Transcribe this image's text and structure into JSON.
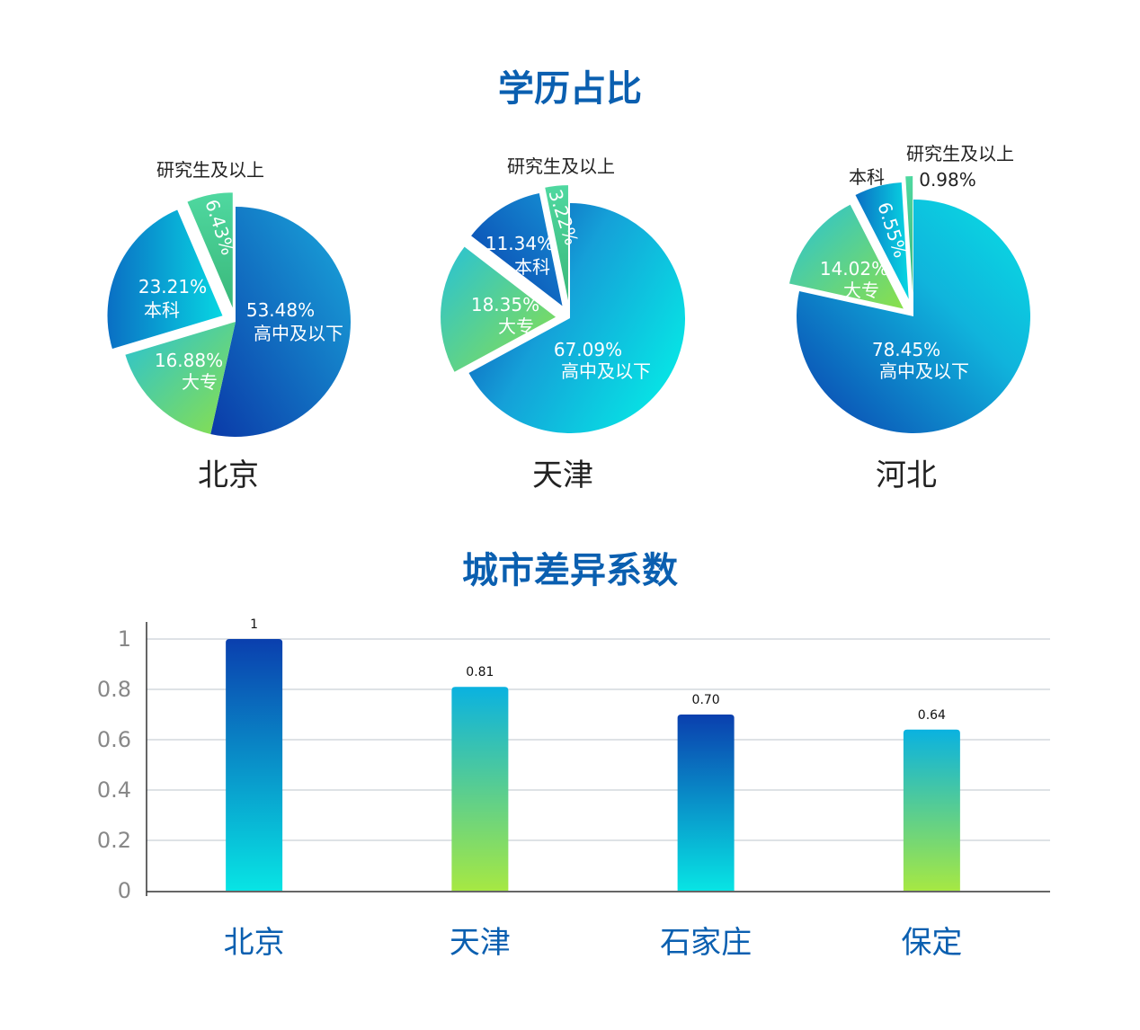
{
  "section1_title": "学历占比",
  "section2_title": "城市差异系数",
  "chart_data": [
    {
      "type": "pie",
      "title": "学历占比",
      "pies": [
        {
          "city": "北京",
          "slices": [
            {
              "label": "高中及以下",
              "value": 53.48,
              "value_text": "53.48%"
            },
            {
              "label": "大专",
              "value": 16.88,
              "value_text": "16.88%"
            },
            {
              "label": "本科",
              "value": 23.21,
              "value_text": "23.21%"
            },
            {
              "label": "研究生及以上",
              "value": 6.43,
              "value_text": "6.43%"
            }
          ]
        },
        {
          "city": "天津",
          "slices": [
            {
              "label": "高中及以下",
              "value": 67.09,
              "value_text": "67.09%"
            },
            {
              "label": "大专",
              "value": 18.35,
              "value_text": "18.35%"
            },
            {
              "label": "本科",
              "value": 11.34,
              "value_text": "11.34%"
            },
            {
              "label": "研究生及以上",
              "value": 3.22,
              "value_text": "3.22%"
            }
          ]
        },
        {
          "city": "河北",
          "slices": [
            {
              "label": "高中及以下",
              "value": 78.45,
              "value_text": "78.45%"
            },
            {
              "label": "大专",
              "value": 14.02,
              "value_text": "14.02%"
            },
            {
              "label": "本科",
              "value": 6.55,
              "value_text": "6.55%"
            },
            {
              "label": "研究生及以上",
              "value": 0.98,
              "value_text": "0.98%"
            }
          ]
        }
      ]
    },
    {
      "type": "bar",
      "title": "城市差异系数",
      "categories": [
        "北京",
        "天津",
        "石家庄",
        "保定"
      ],
      "values": [
        1,
        0.81,
        0.7,
        0.64
      ],
      "value_labels": [
        "1",
        "0.81",
        "0.70",
        "0.64"
      ],
      "ylim": [
        0,
        1
      ],
      "yticks": [
        "0",
        "0.2",
        "0.4",
        "0.6",
        "0.8",
        "1"
      ],
      "grid": true
    }
  ],
  "colors": {
    "title": "#0a5fb0",
    "deep_blue": "#0a3fae",
    "mid_blue": "#1591d4",
    "cyan": "#08d8e2",
    "green": "#6fe07a",
    "lime": "#a7e84a",
    "grid": "#d4d9de"
  }
}
